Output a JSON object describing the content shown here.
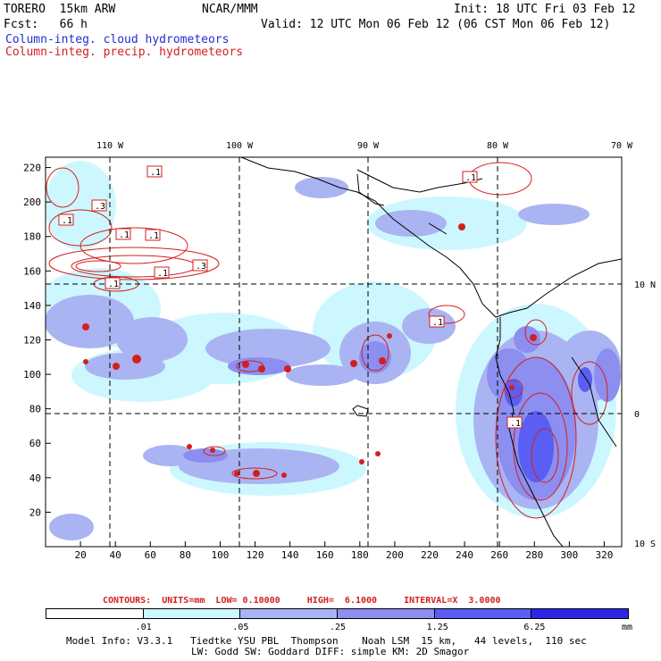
{
  "header": {
    "run_name": "TORERO  15km ARW",
    "org": "NCAR/MMM",
    "init": "Init: 18 UTC Fri 03 Feb 12",
    "fcst": "Fcst:   66 h",
    "valid": "Valid: 12 UTC Mon 06 Feb 12 (06 CST Mon 06 Feb 12)",
    "field_cloud": "Column-integ. cloud hydrometeors",
    "field_precip": "Column-integ. precip. hydrometeors"
  },
  "map": {
    "lon_labels": [
      "110 W",
      "100 W",
      "90 W",
      "80 W",
      "70 W"
    ],
    "lat_labels": [
      "10 N",
      "0",
      "10 S"
    ],
    "x_ticks": [
      "20",
      "40",
      "60",
      "80",
      "100",
      "120",
      "140",
      "160",
      "180",
      "200",
      "220",
      "240",
      "260",
      "280",
      "300",
      "320"
    ],
    "y_ticks": [
      "220",
      "200",
      "180",
      "160",
      "140",
      "120",
      "100",
      "80",
      "60",
      "40",
      "20"
    ],
    "contour_labels": [
      ".1",
      ".3",
      ".1",
      ".1",
      ".1",
      ".3",
      ".1",
      ".1",
      ".1",
      ".1",
      ".1"
    ]
  },
  "legend": {
    "contours_line": "CONTOURS:  UNITS=mm  LOW= 0.10000     HIGH=  6.1000     INTERVAL=X  3.0000",
    "levels": [
      ".01",
      ".05",
      ".25",
      "1.25",
      "6.25"
    ],
    "units": "mm",
    "colors": [
      "#ffffff",
      "#cdf7ff",
      "#aab4f2",
      "#8c8ef0",
      "#5b5ef2",
      "#2b26e6"
    ]
  },
  "footer": {
    "line1": "Model Info: V3.3.1   Tiedtke YSU PBL  Thompson    Noah LSM  15 km,   44 levels,  110 sec",
    "line2": "LW: Godd SW: Goddard DIFF: simple KM: 2D Smagor"
  }
}
